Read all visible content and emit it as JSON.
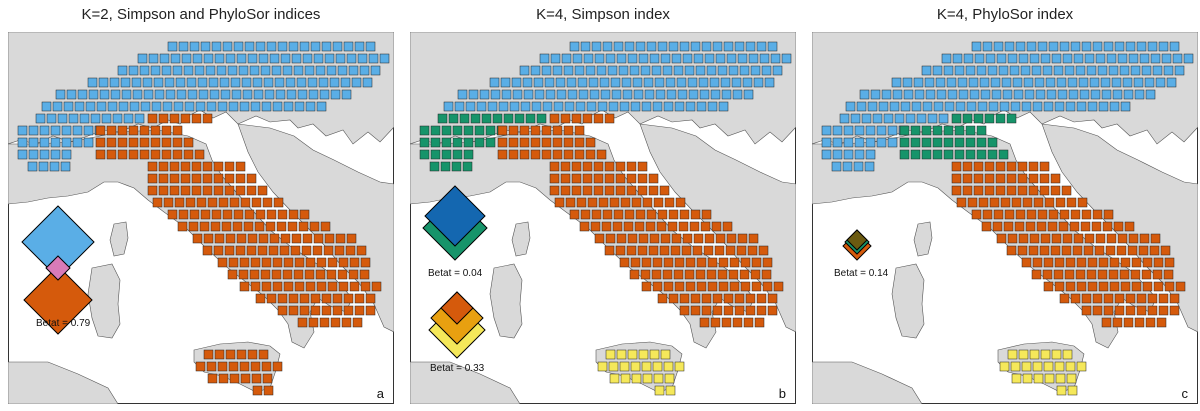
{
  "panels": [
    {
      "title": "K=2, Simpson and PhyloSor indices",
      "letter": "a",
      "betat_labels": [
        "Betat = 0.79"
      ]
    },
    {
      "title": "K=4, Simpson index",
      "letter": "b",
      "betat_labels": [
        "Betat = 0.04",
        "Betat = 0.33"
      ]
    },
    {
      "title": "K=4, PhyloSor index",
      "letter": "c",
      "betat_labels": [
        "Betat = 0.14"
      ]
    }
  ],
  "colors": {
    "blue": "#5aaee6",
    "darkblue": "#1467b0",
    "orange": "#d55a0c",
    "green": "#17946a",
    "yellow": "#f5e85a",
    "gold": "#e8a010",
    "pink": "#d87bb8",
    "olive": "#6b5a10",
    "land": "#d9d9d9",
    "sea": "#ffffff"
  }
}
